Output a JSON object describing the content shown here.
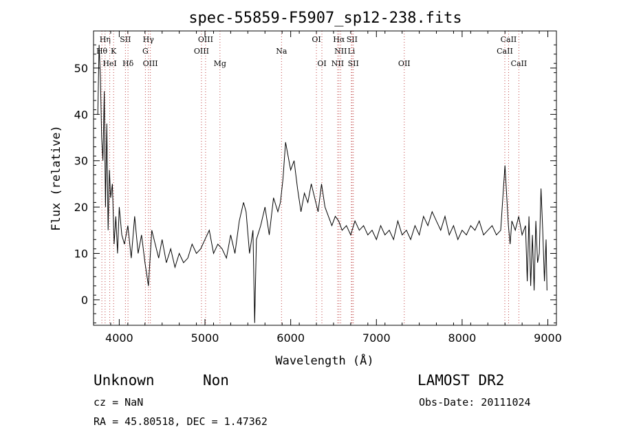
{
  "chart_data": {
    "type": "line",
    "title": "spec-55859-F5907_sp12-238.fits",
    "xlabel": "Wavelength (Å)",
    "ylabel": "Flux (relative)",
    "xlim": [
      3700,
      9100
    ],
    "ylim": [
      -5.5,
      58
    ],
    "xticks": [
      4000,
      5000,
      6000,
      7000,
      8000,
      9000
    ],
    "yticks": [
      0,
      10,
      20,
      30,
      40,
      50
    ],
    "grid": false,
    "series": [
      {
        "x": [
          3750,
          3765,
          3780,
          3795,
          3810,
          3825,
          3840,
          3855,
          3870,
          3885,
          3900,
          3920,
          3940,
          3960,
          3980,
          4000,
          4030,
          4060,
          4100,
          4140,
          4180,
          4220,
          4260,
          4300,
          4340,
          4380,
          4420,
          4460,
          4500,
          4550,
          4600,
          4650,
          4700,
          4750,
          4800,
          4850,
          4900,
          4950,
          5000,
          5050,
          5100,
          5150,
          5200,
          5250,
          5300,
          5350,
          5400,
          5450,
          5480,
          5520,
          5560,
          5580,
          5600,
          5650,
          5700,
          5750,
          5800,
          5850,
          5880,
          5910,
          5940,
          5970,
          6000,
          6040,
          6080,
          6120,
          6160,
          6200,
          6240,
          6280,
          6320,
          6360,
          6400,
          6440,
          6480,
          6520,
          6560,
          6600,
          6650,
          6700,
          6750,
          6800,
          6850,
          6900,
          6950,
          7000,
          7050,
          7100,
          7150,
          7200,
          7250,
          7300,
          7350,
          7400,
          7450,
          7500,
          7550,
          7600,
          7650,
          7700,
          7750,
          7800,
          7850,
          7900,
          7950,
          8000,
          8050,
          8100,
          8150,
          8200,
          8250,
          8300,
          8350,
          8400,
          8450,
          8500,
          8540,
          8560,
          8580,
          8620,
          8660,
          8700,
          8740,
          8760,
          8780,
          8800,
          8820,
          8840,
          8860,
          8880,
          8900,
          8920,
          8940,
          8960,
          8980,
          8990
        ],
        "y": [
          40,
          55,
          48,
          35,
          30,
          45,
          20,
          38,
          15,
          28,
          22,
          25,
          12,
          18,
          10,
          20,
          14,
          12,
          16,
          9,
          18,
          10,
          14,
          8,
          3,
          15,
          12,
          9,
          13,
          8,
          11,
          7,
          10,
          8,
          9,
          12,
          10,
          11,
          13,
          15,
          10,
          12,
          11,
          9,
          14,
          10,
          17,
          21,
          19,
          10,
          15,
          -5,
          13,
          16,
          20,
          14,
          22,
          19,
          21,
          26,
          34,
          31,
          28,
          30,
          24,
          19,
          23,
          21,
          25,
          22,
          19,
          25,
          20,
          18,
          16,
          18,
          17,
          15,
          16,
          14,
          17,
          15,
          16,
          14,
          15,
          13,
          16,
          14,
          15,
          13,
          17,
          14,
          15,
          13,
          16,
          14,
          18,
          16,
          19,
          17,
          15,
          18,
          14,
          16,
          13,
          15,
          14,
          16,
          15,
          17,
          14,
          15,
          16,
          14,
          15,
          29,
          16,
          12,
          17,
          15,
          18,
          14,
          16,
          4,
          18,
          3,
          14,
          2,
          17,
          8,
          10,
          24,
          15,
          4,
          13,
          2
        ],
        "color": "#000000"
      }
    ],
    "lines": [
      {
        "label": "Hη",
        "x": 3835,
        "row": 0
      },
      {
        "label": "Hθ",
        "x": 3797,
        "row": 1
      },
      {
        "label": "HeI",
        "x": 3889,
        "row": 2
      },
      {
        "label": "K",
        "x": 3934,
        "row": 1
      },
      {
        "label": "SII",
        "x": 4072,
        "row": 0
      },
      {
        "label": "Hδ",
        "x": 4102,
        "row": 2
      },
      {
        "label": "Hγ",
        "x": 4340,
        "row": 0
      },
      {
        "label": "G",
        "x": 4305,
        "row": 1
      },
      {
        "label": "OIII",
        "x": 4363,
        "row": 2
      },
      {
        "label": "OIII",
        "x": 5007,
        "row": 0
      },
      {
        "label": "OIII",
        "x": 4959,
        "row": 1
      },
      {
        "label": "Mg",
        "x": 5175,
        "row": 2
      },
      {
        "label": "Na",
        "x": 5893,
        "row": 1
      },
      {
        "label": "OI",
        "x": 6300,
        "row": 0
      },
      {
        "label": "OI",
        "x": 6364,
        "row": 2
      },
      {
        "label": "Hα",
        "x": 6563,
        "row": 0
      },
      {
        "label": "SII",
        "x": 6716,
        "row": 0
      },
      {
        "label": "NII",
        "x": 6583,
        "row": 1
      },
      {
        "label": "Li",
        "x": 6708,
        "row": 1
      },
      {
        "label": "NII",
        "x": 6548,
        "row": 2
      },
      {
        "label": "SII",
        "x": 6731,
        "row": 2
      },
      {
        "label": "OII",
        "x": 7325,
        "row": 2
      },
      {
        "label": "CaII",
        "x": 8542,
        "row": 0
      },
      {
        "label": "CaII",
        "x": 8498,
        "row": 1
      },
      {
        "label": "CaII",
        "x": 8662,
        "row": 2
      }
    ]
  },
  "info": {
    "class": "Unknown",
    "subclass": "Non",
    "survey": "LAMOST DR2",
    "cz": "cz = NaN",
    "obs_date": "Obs-Date: 20111024",
    "coords": "RA =  45.80518, DEC =   1.47362"
  }
}
